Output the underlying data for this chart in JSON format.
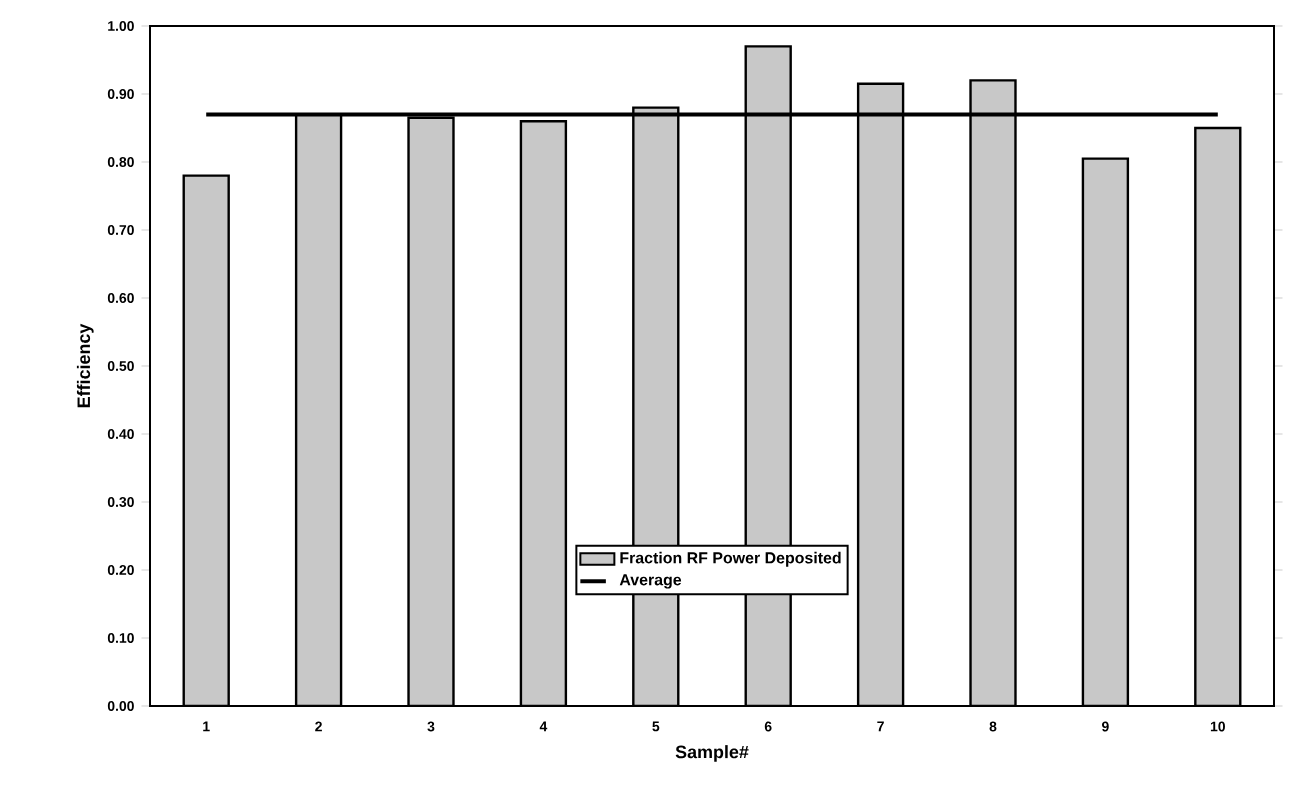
{
  "chart_data": {
    "type": "bar",
    "xlabel": "Sample#",
    "ylabel": "Efficiency",
    "categories": [
      "1",
      "2",
      "3",
      "4",
      "5",
      "6",
      "7",
      "8",
      "9",
      "10"
    ],
    "series": [
      {
        "name": "Fraction RF Power Deposited",
        "color": "#c8c8c8",
        "values": [
          0.78,
          0.87,
          0.865,
          0.86,
          0.88,
          0.97,
          0.915,
          0.92,
          0.805,
          0.85
        ]
      },
      {
        "name": "Average",
        "type": "line",
        "color": "#000000",
        "values": [
          0.87,
          0.87,
          0.87,
          0.87,
          0.87,
          0.87,
          0.87,
          0.87,
          0.87,
          0.87
        ]
      }
    ],
    "ylim": [
      0,
      1
    ],
    "yticks": [
      {
        "value": 0,
        "label": "0.00"
      },
      {
        "value": 0.1,
        "label": "0.10"
      },
      {
        "value": 0.2,
        "label": "0.20"
      },
      {
        "value": 0.3,
        "label": "0.30"
      },
      {
        "value": 0.4,
        "label": "0.40"
      },
      {
        "value": 0.5,
        "label": "0.50"
      },
      {
        "value": 0.6,
        "label": "0.60"
      },
      {
        "value": 0.7,
        "label": "0.70"
      },
      {
        "value": 0.8,
        "label": "0.80"
      },
      {
        "value": 0.9,
        "label": "0.90"
      },
      {
        "value": 1,
        "label": "1.00"
      }
    ],
    "grid": false,
    "legend": "bottom",
    "marker": "none"
  }
}
